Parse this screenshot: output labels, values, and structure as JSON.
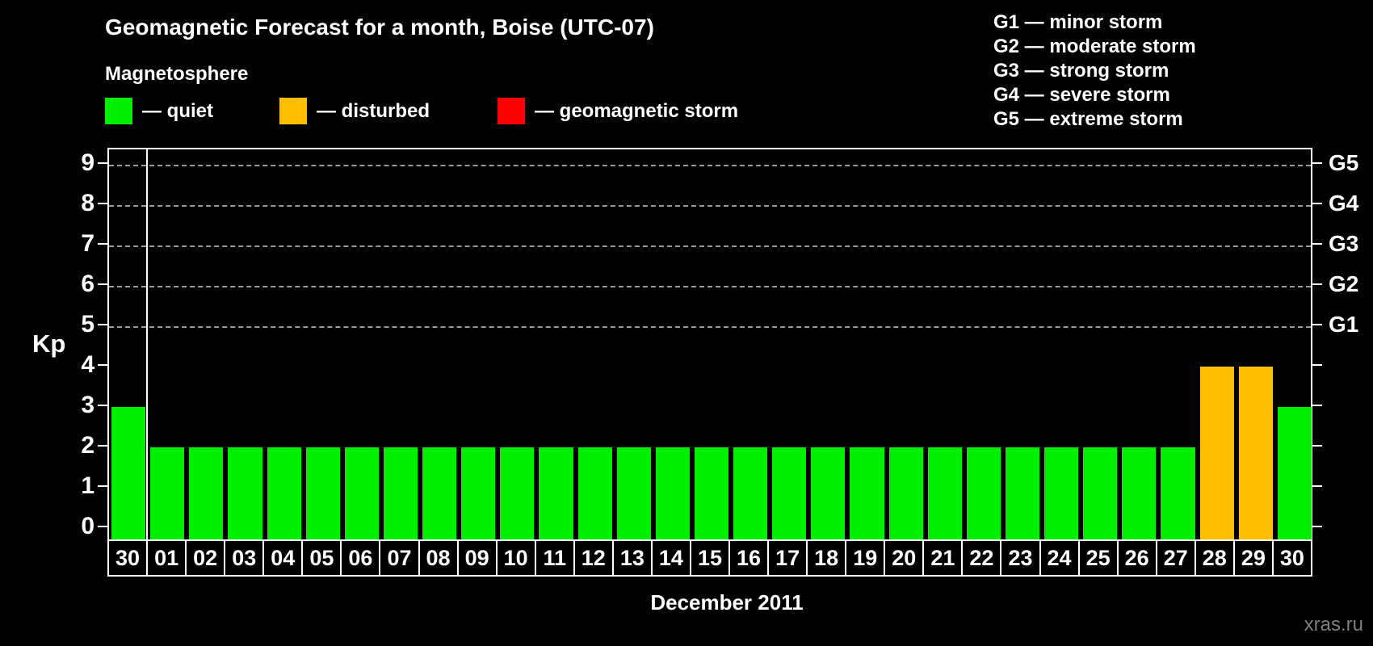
{
  "header": {
    "title": "Geomagnetic Forecast for a month, Boise (UTC-07)",
    "subtitle": "Magnetosphere"
  },
  "legend": {
    "items": [
      {
        "name": "quiet",
        "label": "— quiet",
        "color": "#00EE00"
      },
      {
        "name": "disturbed",
        "label": "— disturbed",
        "color": "#FFBE00"
      },
      {
        "name": "storm",
        "label": "— geomagnetic storm",
        "color": "#FF0000"
      }
    ]
  },
  "g_legend": {
    "lines": [
      "G1 — minor storm",
      "G2 — moderate storm",
      "G3 — strong storm",
      "G4 — severe storm",
      "G5 — extreme storm"
    ]
  },
  "watermark": "xras.ru",
  "chart_data": {
    "type": "bar",
    "title": "Geomagnetic Forecast for a month, Boise (UTC-07)",
    "xlabel": "December 2011",
    "ylabel": "Kp",
    "ylim": [
      0,
      9
    ],
    "yticks": [
      0,
      1,
      2,
      3,
      4,
      5,
      6,
      7,
      8,
      9
    ],
    "gridlines_at_kp": [
      5,
      6,
      7,
      8,
      9
    ],
    "grid": "dashed horizontal at G-storm levels only",
    "right_axis_labels": [
      {
        "label": "G1",
        "kp": 5
      },
      {
        "label": "G2",
        "kp": 6
      },
      {
        "label": "G3",
        "kp": 7
      },
      {
        "label": "G4",
        "kp": 8
      },
      {
        "label": "G5",
        "kp": 9
      }
    ],
    "note": "first column (day 30) belongs to previous month, separated by vertical white line",
    "categories": [
      "30",
      "01",
      "02",
      "03",
      "04",
      "05",
      "06",
      "07",
      "08",
      "09",
      "10",
      "11",
      "12",
      "13",
      "14",
      "15",
      "16",
      "17",
      "18",
      "19",
      "20",
      "21",
      "22",
      "23",
      "24",
      "25",
      "26",
      "27",
      "28",
      "29",
      "30"
    ],
    "values": [
      3,
      2,
      2,
      2,
      2,
      2,
      2,
      2,
      2,
      2,
      2,
      2,
      2,
      2,
      2,
      2,
      2,
      2,
      2,
      2,
      2,
      2,
      2,
      2,
      2,
      2,
      2,
      2,
      4,
      4,
      3
    ],
    "statuses": [
      "quiet",
      "quiet",
      "quiet",
      "quiet",
      "quiet",
      "quiet",
      "quiet",
      "quiet",
      "quiet",
      "quiet",
      "quiet",
      "quiet",
      "quiet",
      "quiet",
      "quiet",
      "quiet",
      "quiet",
      "quiet",
      "quiet",
      "quiet",
      "quiet",
      "quiet",
      "quiet",
      "quiet",
      "quiet",
      "quiet",
      "quiet",
      "quiet",
      "disturbed",
      "disturbed",
      "quiet"
    ],
    "colors": {
      "quiet": "#00EE00",
      "disturbed": "#FFBE00",
      "storm": "#FF0000"
    }
  }
}
